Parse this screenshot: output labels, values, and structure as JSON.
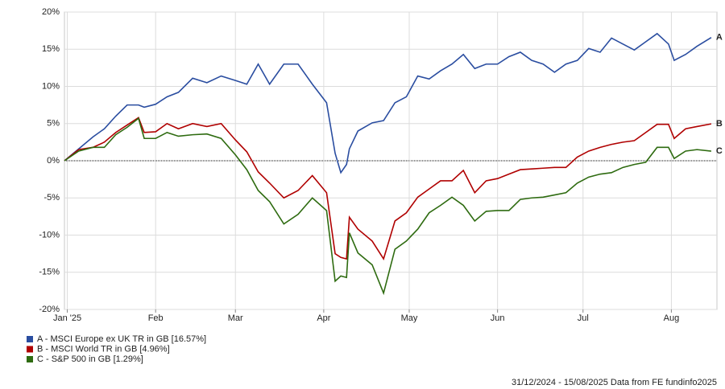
{
  "chart_data": {
    "type": "line",
    "x": [
      0,
      5,
      10,
      14,
      18,
      22,
      26,
      28,
      32,
      36,
      40,
      45,
      50,
      55,
      60,
      64,
      68,
      72,
      77,
      82,
      87,
      92,
      95,
      97,
      99,
      100,
      103,
      108,
      112,
      116,
      120,
      124,
      128,
      132,
      136,
      140,
      144,
      148,
      152,
      156,
      160,
      164,
      168,
      172,
      176,
      180,
      184,
      188,
      192,
      196,
      200,
      204,
      208,
      212,
      214,
      218,
      222,
      227
    ],
    "series": [
      {
        "name": "A - MSCI Europe ex UK TR in GB [16.57%]",
        "end_label": "A",
        "color": "#2a4da0",
        "values": [
          0,
          1.6,
          3.2,
          4.3,
          6,
          7.5,
          7.5,
          7.2,
          7.6,
          8.6,
          9.2,
          11.1,
          10.5,
          11.4,
          10.8,
          10.3,
          13,
          10.3,
          13,
          13,
          10.3,
          7.8,
          1.0,
          -1.6,
          -0.5,
          1.6,
          4.0,
          5.1,
          5.4,
          7.8,
          8.6,
          11.4,
          11,
          12.1,
          13,
          14.3,
          12.4,
          13,
          13,
          14,
          14.6,
          13.5,
          13,
          11.9,
          13,
          13.5,
          15.1,
          14.6,
          16.5,
          15.7,
          14.9,
          16,
          17.1,
          15.7,
          13.5,
          14.3,
          15.4,
          16.57
        ]
      },
      {
        "name": "B - MSCI World TR in GB [4.96%]",
        "end_label": "B",
        "color": "#b00000",
        "values": [
          0,
          1.5,
          1.8,
          2.5,
          3.8,
          4.8,
          5.8,
          3.8,
          3.9,
          5.0,
          4.3,
          5.0,
          4.6,
          5.0,
          2.8,
          1.2,
          -1.5,
          -3.0,
          -5.0,
          -4.0,
          -2.0,
          -4.3,
          -12.5,
          -13.0,
          -13.2,
          -7.6,
          -9.2,
          -10.8,
          -13.2,
          -8.1,
          -7,
          -4.9,
          -3.8,
          -2.7,
          -2.7,
          -1.3,
          -4.3,
          -2.7,
          -2.4,
          -1.8,
          -1.2,
          -1.1,
          -1.0,
          -0.9,
          -0.9,
          0.5,
          1.3,
          1.8,
          2.2,
          2.5,
          2.7,
          3.8,
          4.9,
          4.9,
          3.0,
          4.3,
          4.6,
          4.96
        ]
      },
      {
        "name": "C - S&P 500 in GB [1.29%]",
        "end_label": "C",
        "color": "#2e6b10",
        "values": [
          0,
          1.3,
          1.8,
          1.8,
          3.5,
          4.5,
          5.7,
          3,
          3,
          3.8,
          3.3,
          3.5,
          3.6,
          3.0,
          0.8,
          -1.2,
          -4,
          -5.5,
          -8.5,
          -7.2,
          -5.0,
          -6.7,
          -16.2,
          -15.5,
          -15.7,
          -9.7,
          -12.4,
          -14,
          -17.8,
          -11.9,
          -10.8,
          -9.2,
          -7,
          -6,
          -4.9,
          -6,
          -8.1,
          -6.8,
          -6.7,
          -6.7,
          -5.2,
          -5.0,
          -4.9,
          -4.6,
          -4.3,
          -3.0,
          -2.2,
          -1.8,
          -1.6,
          -0.9,
          -0.5,
          -0.2,
          1.8,
          1.8,
          0.3,
          1.3,
          1.5,
          1.29
        ]
      }
    ],
    "xlim": [
      0,
      229
    ],
    "xticks": [
      {
        "value": 1,
        "label": "Jan '25"
      },
      {
        "value": 32,
        "label": "Feb"
      },
      {
        "value": 60,
        "label": "Mar"
      },
      {
        "value": 91,
        "label": "Apr"
      },
      {
        "value": 121,
        "label": "May"
      },
      {
        "value": 152,
        "label": "Jun"
      },
      {
        "value": 182,
        "label": "Jul"
      },
      {
        "value": 213,
        "label": "Aug"
      }
    ],
    "ylim": [
      -20,
      20
    ],
    "yticks": [
      {
        "value": 20,
        "label": "20%"
      },
      {
        "value": 15,
        "label": "15%"
      },
      {
        "value": 10,
        "label": "10%"
      },
      {
        "value": 5,
        "label": "5%"
      },
      {
        "value": 0,
        "label": "0%"
      },
      {
        "value": -5,
        "label": "-5%"
      },
      {
        "value": -10,
        "label": "-10%"
      },
      {
        "value": -15,
        "label": "-15%"
      },
      {
        "value": -20,
        "label": "-20%"
      }
    ],
    "grid": true,
    "footer": "31/12/2024 - 15/08/2025 Data from FE fundinfo2025"
  }
}
